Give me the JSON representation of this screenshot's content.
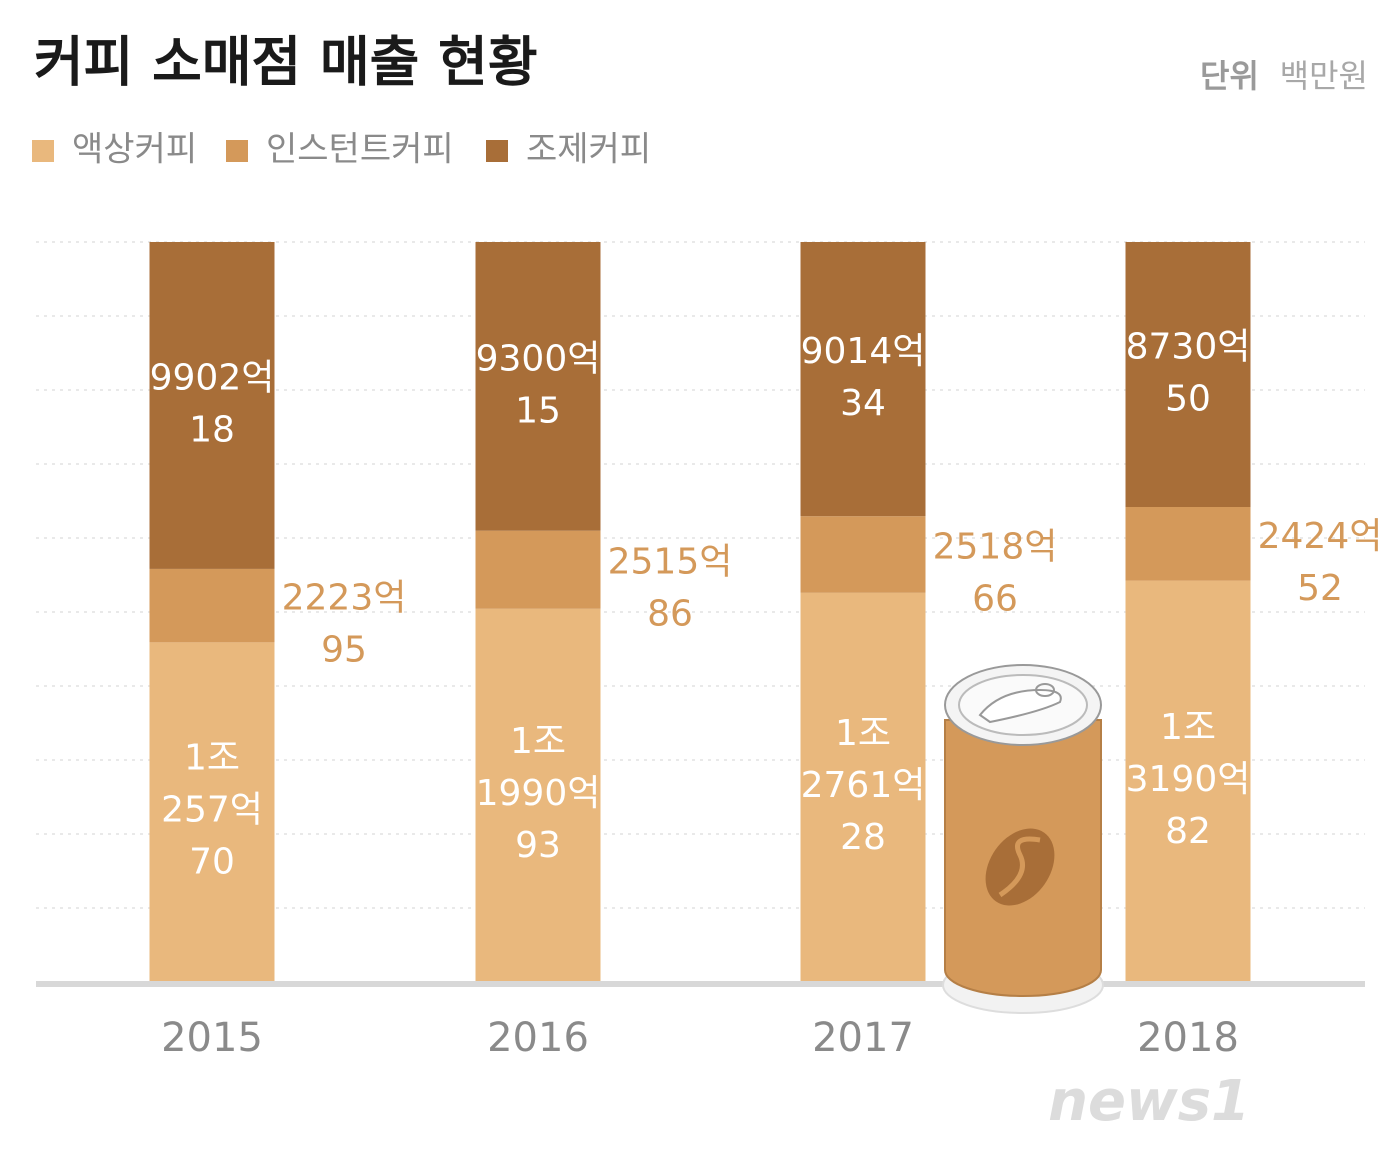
{
  "chart_data": {
    "type": "stacked_bar_100",
    "title": "커피 소매점 매출 현황",
    "unit_label": "단위",
    "unit": "백만원",
    "categories": [
      "2015",
      "2016",
      "2017",
      "2018"
    ],
    "series": [
      {
        "name": "액상커피",
        "color": "#e9b87d",
        "label_color": "#ffffff",
        "values": [
          1025770,
          1199093,
          1276128,
          1319082
        ],
        "value_labels": [
          "1조\n257억\n70",
          "1조\n1990억\n93",
          "1조\n2761억\n28",
          "1조\n3190억\n82"
        ]
      },
      {
        "name": "인스턴트커피",
        "color": "#d4995a",
        "label_color": "#d4995a",
        "values": [
          222395,
          251586,
          251866,
          242452
        ],
        "value_labels": [
          "2223억\n95",
          "2515억\n86",
          "2518억\n66",
          "2424억\n52"
        ]
      },
      {
        "name": "조제커피",
        "color": "#a86e38",
        "label_color": "#ffffff",
        "values": [
          990218,
          930015,
          901434,
          873050
        ],
        "value_labels": [
          "9902억\n18",
          "9300억\n15",
          "9014억\n34",
          "8730억\n50"
        ]
      }
    ],
    "watermark": "news1"
  }
}
